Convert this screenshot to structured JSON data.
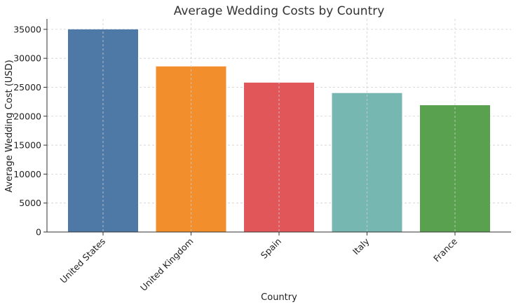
{
  "chart_data": {
    "type": "bar",
    "title": "Average Wedding Costs by Country",
    "xlabel": "Country",
    "ylabel": "Average Wedding Cost (USD)",
    "categories": [
      "United States",
      "United Kingdom",
      "Spain",
      "Italy",
      "France"
    ],
    "values": [
      35000,
      28600,
      25800,
      24000,
      21900
    ],
    "colors": [
      "#4e79a7",
      "#f28e2b",
      "#e15759",
      "#76b7b2",
      "#59a14f"
    ],
    "ylim": [
      0,
      36800
    ],
    "yticks": [
      0,
      5000,
      10000,
      15000,
      20000,
      25000,
      30000,
      35000
    ],
    "ytick_labels": [
      "0",
      "5000",
      "10000",
      "15000",
      "20000",
      "25000",
      "30000",
      "35000"
    ],
    "grid": true,
    "legend": "none"
  }
}
